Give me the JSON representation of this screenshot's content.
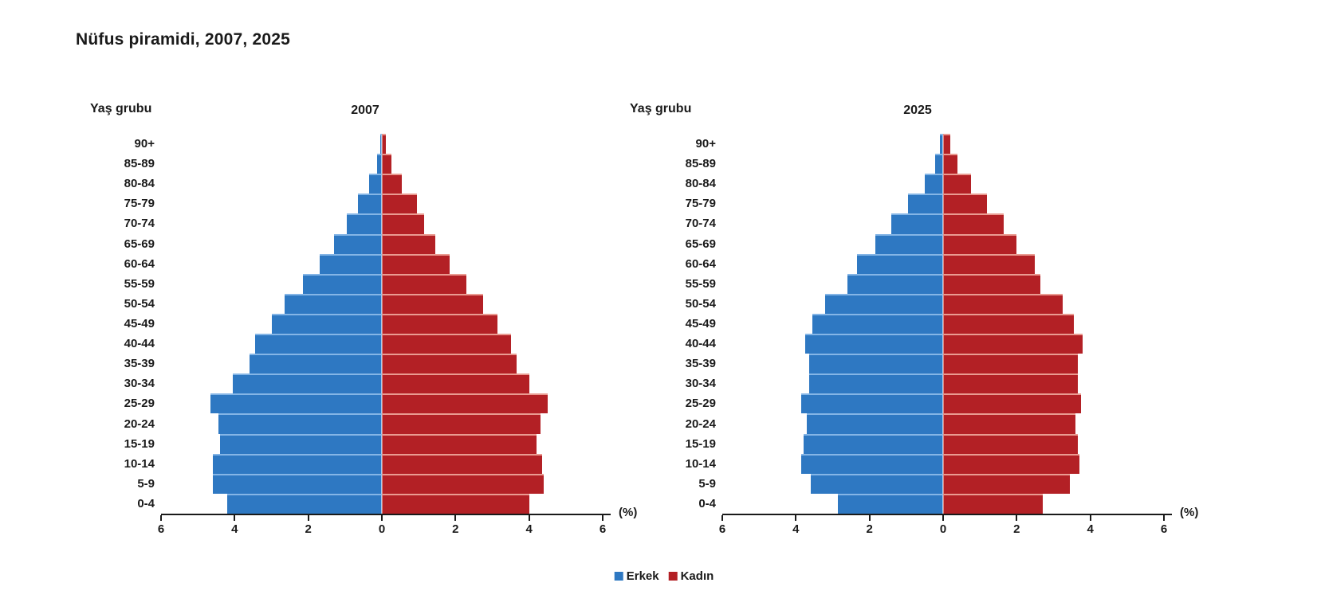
{
  "title": "Nüfus piramidi, 2007, 2025",
  "age_axis_label": "Yaş grubu",
  "percent_unit_label": "(%)",
  "legend": {
    "male": "Erkek",
    "female": "Kadın"
  },
  "colors": {
    "male": "#2E78C2",
    "male_light": "#84B5E6",
    "male_center_edge": "#A6C9EE",
    "female": "#B32025",
    "female_light": "#EA9B91",
    "female_center_edge": "#DE8B82",
    "axis": "#1a1a1a",
    "text": "#1a1a1a"
  },
  "chart_data": [
    {
      "type": "bar",
      "subtype": "population-pyramid",
      "title": "2007",
      "unit": "(%)",
      "legend_position": "bottom-center-shared",
      "grid": false,
      "xlim": [
        -6,
        6
      ],
      "x_tick_labels": [
        "6",
        "4",
        "2",
        "0",
        "2",
        "4",
        "6"
      ],
      "age_groups": [
        "90+",
        "85-89",
        "80-84",
        "75-79",
        "70-74",
        "65-69",
        "60-64",
        "55-59",
        "50-54",
        "45-49",
        "40-44",
        "35-39",
        "30-34",
        "25-29",
        "20-24",
        "15-19",
        "10-14",
        "5-9",
        "0-4"
      ],
      "series": [
        {
          "name": "Erkek",
          "side": "left",
          "values": [
            0.04,
            0.13,
            0.35,
            0.65,
            0.95,
            1.3,
            1.7,
            2.15,
            2.65,
            3.0,
            3.45,
            3.6,
            4.05,
            4.65,
            4.45,
            4.4,
            4.6,
            4.6,
            4.2
          ]
        },
        {
          "name": "Kadın",
          "side": "right",
          "values": [
            0.1,
            0.25,
            0.55,
            0.95,
            1.15,
            1.45,
            1.85,
            2.3,
            2.75,
            3.15,
            3.5,
            3.65,
            4.0,
            4.5,
            4.3,
            4.2,
            4.35,
            4.4,
            4.0
          ]
        }
      ]
    },
    {
      "type": "bar",
      "subtype": "population-pyramid",
      "title": "2025",
      "unit": "(%)",
      "legend_position": "bottom-center-shared",
      "grid": false,
      "xlim": [
        -6,
        6
      ],
      "x_tick_labels": [
        "6",
        "4",
        "2",
        "0",
        "2",
        "4",
        "6"
      ],
      "age_groups": [
        "90+",
        "85-89",
        "80-84",
        "75-79",
        "70-74",
        "65-69",
        "60-64",
        "55-59",
        "50-54",
        "45-49",
        "40-44",
        "35-39",
        "30-34",
        "25-29",
        "20-24",
        "15-19",
        "10-14",
        "5-9",
        "0-4"
      ],
      "series": [
        {
          "name": "Erkek",
          "side": "left",
          "values": [
            0.08,
            0.22,
            0.5,
            0.95,
            1.4,
            1.85,
            2.35,
            2.6,
            3.2,
            3.55,
            3.75,
            3.65,
            3.65,
            3.85,
            3.7,
            3.8,
            3.85,
            3.6,
            2.85
          ]
        },
        {
          "name": "Kadın",
          "side": "right",
          "values": [
            0.2,
            0.4,
            0.75,
            1.2,
            1.65,
            2.0,
            2.5,
            2.65,
            3.25,
            3.55,
            3.8,
            3.65,
            3.65,
            3.75,
            3.6,
            3.65,
            3.7,
            3.45,
            2.7
          ]
        }
      ]
    }
  ]
}
